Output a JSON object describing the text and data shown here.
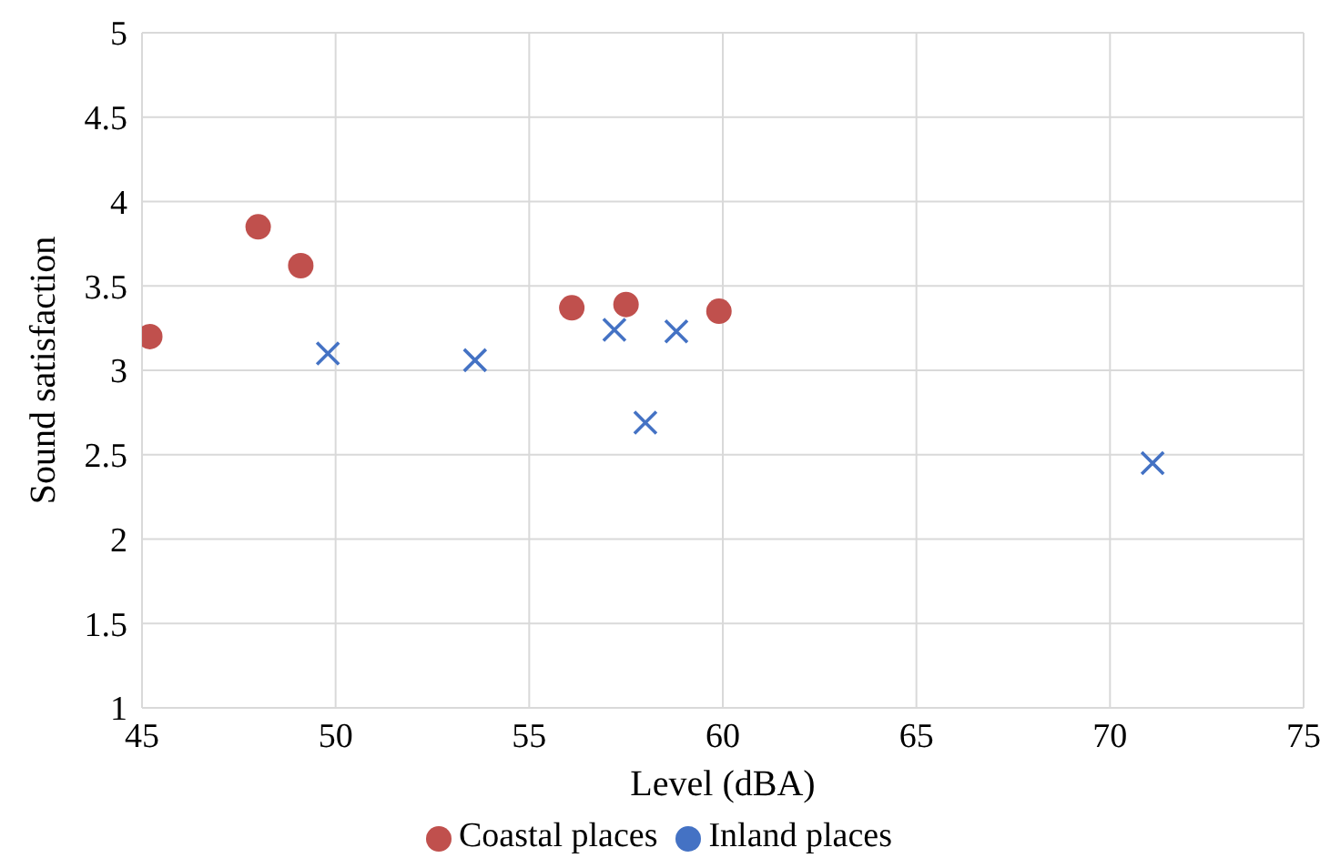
{
  "chart_data": {
    "type": "scatter",
    "xlabel": "Level (dBA)",
    "ylabel": "Sound satisfaction",
    "xlim": [
      45,
      75
    ],
    "xticks": [
      45,
      50,
      55,
      60,
      65,
      70,
      75
    ],
    "ylim": [
      1,
      5
    ],
    "yticks": [
      1,
      {
        "value": 1.5,
        "label": "1.5"
      },
      2,
      {
        "value": 2.5,
        "label": "2.5"
      },
      3,
      {
        "value": 3.5,
        "label": "3.5"
      },
      4,
      {
        "value": 4.5,
        "label": "4.5"
      },
      5
    ],
    "grid": true,
    "legend": "bottom",
    "series": [
      {
        "name": "Inland places",
        "color": "#4472c4",
        "marker": "cross",
        "x": [
          49.8,
          53.6,
          57.2,
          58.8,
          58.0,
          71.1
        ],
        "values": [
          3.1,
          3.06,
          3.24,
          3.23,
          2.69,
          2.45
        ]
      },
      {
        "name": "Coastal places",
        "color": "#c0504d",
        "marker": "circle",
        "x": [
          45.2,
          48.0,
          49.1,
          56.1,
          57.5,
          59.9
        ],
        "values": [
          3.2,
          3.85,
          3.62,
          3.37,
          3.39,
          3.35
        ]
      }
    ]
  }
}
